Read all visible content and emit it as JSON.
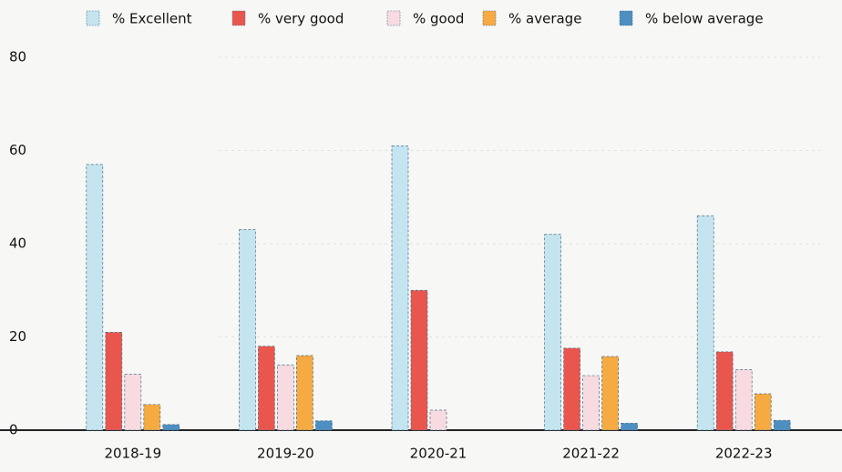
{
  "chart_data": {
    "type": "bar",
    "categories": [
      "2018-19",
      "2019-20",
      "2020-21",
      "2021-22",
      "2022-23"
    ],
    "series": [
      {
        "name": "% Excellent",
        "color": "#c4e5f0",
        "values": [
          57,
          43,
          61,
          42,
          46
        ]
      },
      {
        "name": "% very good",
        "color": "#e9564e",
        "values": [
          21,
          18,
          30,
          17.6,
          16.8
        ]
      },
      {
        "name": "% good",
        "color": "#f7dbe0",
        "values": [
          12,
          14,
          4.3,
          11.7,
          13
        ]
      },
      {
        "name": "% average",
        "color": "#f6aa42",
        "values": [
          5.5,
          16,
          0,
          15.8,
          7.8
        ]
      },
      {
        "name": "% below average",
        "color": "#4d8fc0",
        "values": [
          1.2,
          2,
          0,
          1.5,
          2.1
        ]
      }
    ],
    "ylim": [
      0,
      80
    ],
    "yticks": [
      0,
      20,
      40,
      60,
      80
    ],
    "grid": true,
    "legend": "top"
  }
}
